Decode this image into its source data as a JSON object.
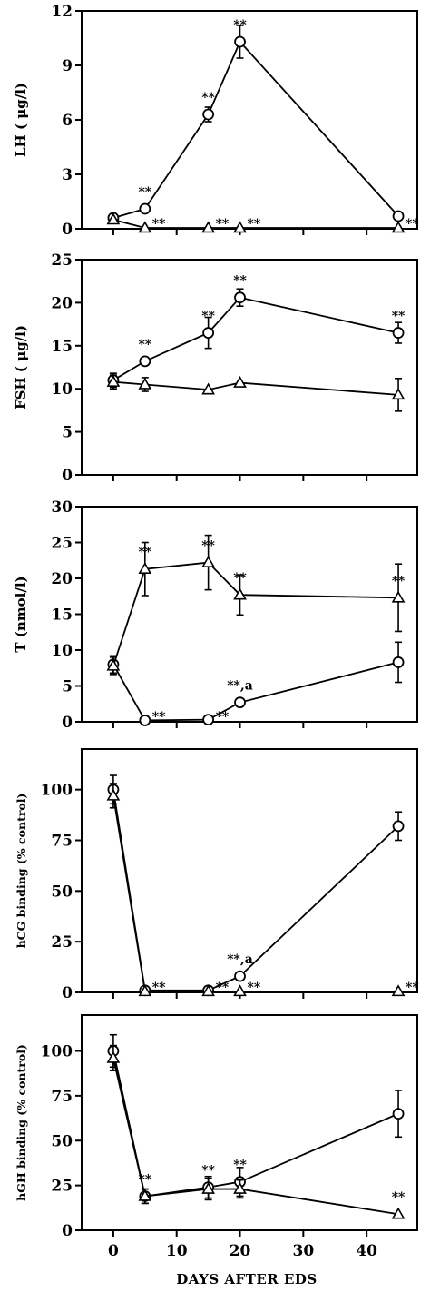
{
  "chart_data": [
    {
      "type": "line",
      "ylabel": "LH ( μg/l)",
      "ylim": [
        0,
        12
      ],
      "yticks": [
        "0",
        "3",
        "6",
        "9",
        "12"
      ],
      "xlim": [
        -5,
        48
      ],
      "series": [
        {
          "marker": "circle",
          "x": [
            0,
            5,
            15,
            20,
            45
          ],
          "y": [
            0.6,
            1.1,
            6.3,
            10.3,
            0.7
          ],
          "err": [
            0,
            0,
            0.4,
            0.9,
            0
          ]
        },
        {
          "marker": "triangle",
          "x": [
            0,
            5,
            15,
            20,
            45
          ],
          "y": [
            0.5,
            0.05,
            0.05,
            0.05,
            0.05
          ],
          "err": [
            0,
            0,
            0,
            0,
            0
          ]
        }
      ],
      "annotations": [
        {
          "text": "**",
          "x": 5,
          "y": 1.1
        },
        {
          "text": "**",
          "x": 15,
          "y": 6.3
        },
        {
          "text": "**",
          "x": 20,
          "y": 10.3
        },
        {
          "text": "**",
          "x": 5,
          "y": 0.05
        },
        {
          "text": "**",
          "x": 15,
          "y": 0.05
        },
        {
          "text": "**",
          "x": 20,
          "y": 0.05
        },
        {
          "text": "**",
          "x": 45,
          "y": 0.05
        }
      ]
    },
    {
      "type": "line",
      "ylabel": "FSH ( μg/l)",
      "ylim": [
        0,
        25
      ],
      "yticks": [
        "0",
        "5",
        "10",
        "15",
        "20",
        "25"
      ],
      "xlim": [
        -5,
        48
      ],
      "series": [
        {
          "marker": "circle",
          "x": [
            0,
            5,
            15,
            20,
            45
          ],
          "y": [
            11,
            13.2,
            16.5,
            20.6,
            16.5
          ],
          "err": [
            0.8,
            0,
            1.8,
            1.0,
            1.2
          ]
        },
        {
          "marker": "triangle",
          "x": [
            0,
            5,
            15,
            20,
            45
          ],
          "y": [
            10.8,
            10.5,
            9.9,
            10.7,
            9.3
          ],
          "err": [
            0.8,
            0.8,
            0,
            0,
            1.9
          ]
        }
      ],
      "annotations": [
        {
          "text": "**",
          "x": 5,
          "y": 13.2
        },
        {
          "text": "**",
          "x": 15,
          "y": 16.5
        },
        {
          "text": "**",
          "x": 20,
          "y": 20.6
        },
        {
          "text": "**",
          "x": 45,
          "y": 16.5
        }
      ]
    },
    {
      "type": "line",
      "ylabel": "T (nmol/l)",
      "ylim": [
        0,
        30
      ],
      "yticks": [
        "0",
        "5",
        "10",
        "15",
        "20",
        "25",
        "30"
      ],
      "xlim": [
        -5,
        48
      ],
      "series": [
        {
          "marker": "circle",
          "x": [
            0,
            5,
            15,
            20,
            45
          ],
          "y": [
            8,
            0.2,
            0.3,
            2.7,
            8.3
          ],
          "err": [
            1.2,
            0,
            0,
            0.5,
            2.8
          ]
        },
        {
          "marker": "triangle",
          "x": [
            0,
            5,
            15,
            20,
            45
          ],
          "y": [
            7.8,
            21.3,
            22.2,
            17.7,
            17.3
          ],
          "err": [
            1.2,
            3.7,
            3.8,
            2.8,
            4.7
          ]
        }
      ],
      "annotations": [
        {
          "text": "**",
          "x": 5,
          "y": 21.3
        },
        {
          "text": "**",
          "x": 15,
          "y": 22.2
        },
        {
          "text": "**",
          "x": 20,
          "y": 17.7
        },
        {
          "text": "**",
          "x": 45,
          "y": 17.3
        },
        {
          "text": "**",
          "x": 5,
          "y": 0.2
        },
        {
          "text": "**",
          "x": 15,
          "y": 0.3
        },
        {
          "text": "**,a",
          "x": 20,
          "y": 2.7
        }
      ]
    },
    {
      "type": "line",
      "ylabel": "hCG binding (% control)",
      "ylim": [
        0,
        120
      ],
      "yticks": [
        "0",
        "25",
        "50",
        "75",
        "100"
      ],
      "xlim": [
        -5,
        48
      ],
      "series": [
        {
          "marker": "circle",
          "x": [
            0,
            5,
            15,
            20,
            45
          ],
          "y": [
            100,
            1,
            1,
            8,
            82
          ],
          "err": [
            7,
            0,
            0,
            0,
            7
          ]
        },
        {
          "marker": "triangle",
          "x": [
            0,
            5,
            15,
            20,
            45
          ],
          "y": [
            97,
            0.5,
            0.5,
            0.5,
            0.5
          ],
          "err": [
            6,
            0,
            0,
            0,
            0
          ]
        }
      ],
      "annotations": [
        {
          "text": "**",
          "x": 5,
          "y": 1
        },
        {
          "text": "**",
          "x": 15,
          "y": 1
        },
        {
          "text": "**,a",
          "x": 20,
          "y": 8
        },
        {
          "text": "**",
          "x": 20,
          "y": 0.5
        },
        {
          "text": "**",
          "x": 45,
          "y": 0.5
        }
      ]
    },
    {
      "type": "line",
      "ylabel": "hGH binding (% control)",
      "ylim": [
        0,
        120
      ],
      "yticks": [
        "0",
        "25",
        "50",
        "75",
        "100"
      ],
      "xlim": [
        -5,
        48
      ],
      "xticks": [
        "0",
        "10",
        "20",
        "30",
        "40"
      ],
      "xlabel": "DAYS AFTER EDS",
      "series": [
        {
          "marker": "circle",
          "x": [
            0,
            5,
            15,
            20,
            45
          ],
          "y": [
            100,
            19,
            24,
            27,
            65
          ],
          "err": [
            9,
            4,
            6,
            8,
            13
          ]
        },
        {
          "marker": "triangle",
          "x": [
            0,
            5,
            15,
            20,
            45
          ],
          "y": [
            96,
            19,
            23,
            23,
            9
          ],
          "err": [
            7,
            4,
            6,
            5,
            0
          ]
        }
      ],
      "annotations": [
        {
          "text": "**",
          "x": 5,
          "y": 19
        },
        {
          "text": "**",
          "x": 15,
          "y": 24
        },
        {
          "text": "**",
          "x": 20,
          "y": 27
        },
        {
          "text": "**",
          "x": 45,
          "y": 9
        }
      ]
    }
  ]
}
